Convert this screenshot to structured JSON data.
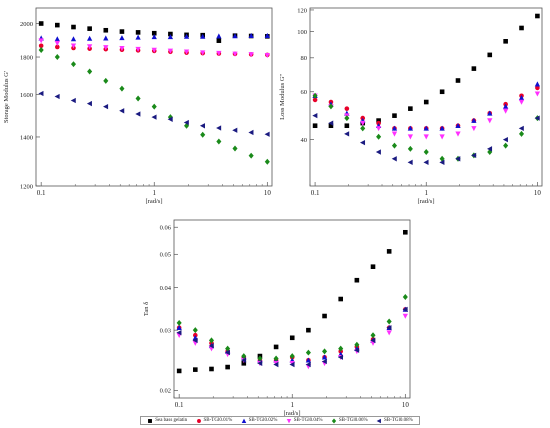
{
  "chart_data": [
    {
      "type": "scatter",
      "title": "",
      "xlabel": "[rad/s]",
      "ylabel": "Storage Modulus G'",
      "xscale": "log",
      "yscale": "log",
      "xlim": [
        0.09,
        11
      ],
      "ylim": [
        1200,
        2100
      ],
      "xticks": [
        0.1,
        1,
        10
      ],
      "xtick_labels": [
        "0.1",
        "1",
        "10"
      ],
      "yticks": [
        1200,
        1400,
        1600,
        1800,
        2000
      ],
      "ytick_labels": [
        "1200",
        "1400",
        "1600",
        "1800",
        "2000"
      ],
      "x": [
        0.1,
        0.1389,
        0.1931,
        0.2683,
        0.3728,
        0.5179,
        0.7197,
        1.0,
        1.3895,
        1.9307,
        2.6827,
        3.7276,
        5.1795,
        7.1969,
        10.0
      ],
      "series": [
        {
          "name": "Sea bass gelatin",
          "marker": "square",
          "color": "#000000",
          "values": [
            2000,
            1990,
            1978,
            1968,
            1958,
            1950,
            1945,
            1940,
            1935,
            1930,
            1928,
            1895,
            1925,
            1923,
            1921
          ]
        },
        {
          "name": "SB-TGl0.01%",
          "marker": "circle",
          "color": "#e8002a",
          "values": [
            1865,
            1858,
            1852,
            1848,
            1845,
            1842,
            1838,
            1835,
            1830,
            1825,
            1822,
            1820,
            1818,
            1815,
            1812
          ]
        },
        {
          "name": "SB-TGl0.02%",
          "marker": "triangle-up",
          "color": "#1010d0",
          "values": [
            1910,
            1905,
            1905,
            1908,
            1910,
            1912,
            1915,
            1918,
            1918,
            1920,
            1920,
            1922,
            1923,
            1925,
            1925
          ]
        },
        {
          "name": "SB-TGl0.04%",
          "marker": "triangle-down",
          "color": "#ff30ff",
          "values": [
            1895,
            1880,
            1865,
            1860,
            1855,
            1850,
            1845,
            1840,
            1835,
            1830,
            1825,
            1822,
            1818,
            1815,
            1810
          ]
        },
        {
          "name": "SB-TGl0.06%",
          "marker": "diamond",
          "color": "#1a8a1a",
          "values": [
            1840,
            1800,
            1760,
            1720,
            1670,
            1630,
            1580,
            1540,
            1490,
            1450,
            1410,
            1380,
            1350,
            1320,
            1295
          ]
        },
        {
          "name": "SB-TGl0.08%",
          "marker": "triangle-left",
          "color": "#1a1a80",
          "values": [
            1605,
            1590,
            1570,
            1555,
            1540,
            1520,
            1505,
            1490,
            1480,
            1465,
            1450,
            1440,
            1430,
            1420,
            1412
          ]
        }
      ]
    },
    {
      "type": "scatter",
      "title": "",
      "xlabel": "[rad/s]",
      "ylabel": "Loss Modulus G''",
      "xscale": "log",
      "yscale": "log",
      "xlim": [
        0.09,
        11
      ],
      "ylim": [
        27,
        122
      ],
      "xticks": [
        0.1,
        1,
        10
      ],
      "xtick_labels": [
        "0.1",
        "1",
        "10"
      ],
      "yticks": [
        40,
        60,
        80,
        100,
        120
      ],
      "ytick_labels": [
        "40",
        "60",
        "80",
        "100",
        "120"
      ],
      "x": [
        0.1,
        0.1389,
        0.1931,
        0.2683,
        0.3728,
        0.5179,
        0.7197,
        1.0,
        1.3895,
        1.9307,
        2.6827,
        3.7276,
        5.1795,
        7.1969,
        10.0
      ],
      "series": [
        {
          "name": "Sea bass gelatin",
          "marker": "square",
          "color": "#000000",
          "values": [
            45,
            45,
            45,
            46,
            47,
            49,
            52,
            55,
            60,
            66,
            73,
            82,
            92,
            103,
            114
          ]
        },
        {
          "name": "SB-TGl0.01%",
          "marker": "circle",
          "color": "#e8002a",
          "values": [
            56,
            55,
            52,
            48,
            46,
            44,
            44,
            44,
            44,
            45,
            47,
            50,
            54,
            58,
            62
          ]
        },
        {
          "name": "SB-TGl0.02%",
          "marker": "triangle-up",
          "color": "#1010d0",
          "values": [
            58,
            54,
            50,
            47,
            45,
            44,
            44,
            44,
            44,
            45,
            47,
            50,
            53,
            57,
            64
          ]
        },
        {
          "name": "SB-TGl0.04%",
          "marker": "triangle-down",
          "color": "#ff30ff",
          "values": [
            58,
            53,
            49,
            46,
            44,
            42,
            41,
            41,
            41,
            42,
            44,
            47,
            51,
            55,
            59
          ]
        },
        {
          "name": "SB-TGl0.06%",
          "marker": "diamond",
          "color": "#1a8a1a",
          "values": [
            58,
            53,
            48,
            44,
            41,
            38,
            37,
            36,
            34,
            34,
            35,
            36,
            38,
            42,
            48
          ]
        },
        {
          "name": "SB-TGl0.08%",
          "marker": "triangle-left",
          "color": "#1a1a80",
          "values": [
            49,
            46,
            42,
            39,
            36,
            34,
            33,
            33,
            33,
            34,
            35,
            37,
            40,
            44,
            48
          ]
        }
      ]
    },
    {
      "type": "scatter",
      "title": "",
      "xlabel": "[rad/s]",
      "ylabel": "Tan δ",
      "xscale": "log",
      "yscale": "log",
      "xlim": [
        0.09,
        11
      ],
      "ylim": [
        0.019,
        0.063
      ],
      "xticks": [
        0.1,
        1,
        10
      ],
      "xtick_labels": [
        "0.1",
        "1",
        "10"
      ],
      "yticks": [
        0.02,
        0.03,
        0.04,
        0.05,
        0.06
      ],
      "ytick_labels": [
        "0.02",
        "0.03",
        "0.04",
        "0.05",
        "0.06"
      ],
      "x": [
        0.1,
        0.1389,
        0.1931,
        0.2683,
        0.3728,
        0.5179,
        0.7197,
        1.0,
        1.3895,
        1.9307,
        2.6827,
        3.7276,
        5.1795,
        7.1969,
        10.0
      ],
      "series": [
        {
          "name": "Sea bass gelatin",
          "marker": "square",
          "color": "#000000",
          "values": [
            0.0228,
            0.023,
            0.0231,
            0.0234,
            0.024,
            0.0252,
            0.0268,
            0.0285,
            0.03,
            0.033,
            0.037,
            0.042,
            0.046,
            0.051,
            0.058
          ]
        },
        {
          "name": "SB-TGl0.01%",
          "marker": "circle",
          "color": "#e8002a",
          "values": [
            0.0305,
            0.029,
            0.0275,
            0.026,
            0.025,
            0.0245,
            0.0245,
            0.025,
            0.0245,
            0.025,
            0.026,
            0.0268,
            0.0282,
            0.0305,
            0.0345
          ]
        },
        {
          "name": "SB-TGl0.02%",
          "marker": "triangle-up",
          "color": "#1010d0",
          "values": [
            0.0305,
            0.0285,
            0.027,
            0.026,
            0.025,
            0.0245,
            0.0245,
            0.0245,
            0.0245,
            0.025,
            0.0255,
            0.0265,
            0.028,
            0.0305,
            0.0345
          ]
        },
        {
          "name": "SB-TGl0.04%",
          "marker": "triangle-down",
          "color": "#ff30ff",
          "values": [
            0.029,
            0.0275,
            0.0265,
            0.0255,
            0.0245,
            0.024,
            0.024,
            0.024,
            0.0235,
            0.024,
            0.025,
            0.026,
            0.0275,
            0.0295,
            0.033
          ]
        },
        {
          "name": "SB-TGl0.06%",
          "marker": "diamond",
          "color": "#1a8a1a",
          "values": [
            0.0315,
            0.03,
            0.028,
            0.0265,
            0.0252,
            0.0248,
            0.0248,
            0.0252,
            0.0258,
            0.026,
            0.0265,
            0.0272,
            0.029,
            0.0318,
            0.0375
          ]
        },
        {
          "name": "SB-TGl0.08%",
          "marker": "triangle-left",
          "color": "#1a1a80",
          "values": [
            0.0295,
            0.028,
            0.027,
            0.0258,
            0.0245,
            0.024,
            0.0238,
            0.0238,
            0.0238,
            0.0243,
            0.025,
            0.0262,
            0.028,
            0.0305,
            0.0345
          ]
        }
      ]
    }
  ]
}
